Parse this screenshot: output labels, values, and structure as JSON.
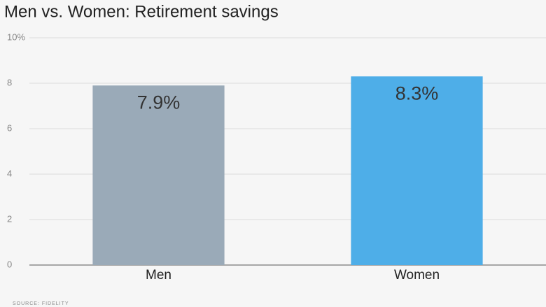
{
  "chart_data": {
    "type": "bar",
    "title": "Men vs. Women: Retirement savings",
    "categories": [
      "Men",
      "Women"
    ],
    "values": [
      7.9,
      8.3
    ],
    "value_labels": [
      "7.9%",
      "8.3%"
    ],
    "colors": [
      "#9aaab8",
      "#4eaee8"
    ],
    "ylim": [
      0,
      10
    ],
    "yticks": [
      0,
      2,
      4,
      6,
      8,
      {
        "value": 10,
        "label": "10%"
      }
    ],
    "grid": true,
    "source": "SOURCE: FIDELITY"
  }
}
